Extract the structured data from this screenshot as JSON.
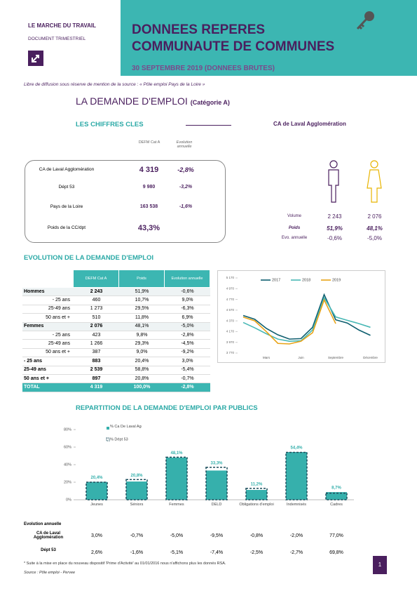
{
  "header": {
    "left_title": "LE MARCHE DU TRAVAIL",
    "left_subtitle": "DOCUMENT TRIMESTRIEL",
    "title_line1": "DONNEES REPERES",
    "title_line2": "COMMUNAUTE DE COMMUNES",
    "date": "30 SEPTEMBRE 2019 (DONNEES BRUTES)"
  },
  "notice": "Libre de diffusion sous réserve de mention de la source : « Pôle emploi Pays de la Loire »",
  "section": {
    "title": "LA DEMANDE D'EMPLOI",
    "subtitle": "(Catégorie A)"
  },
  "key_figures": {
    "title": "LES CHIFFRES CLES",
    "col1": "DEFM Cat A",
    "col2": "Evolution annuelle",
    "rows": [
      {
        "label": "CA de Laval Agglomération",
        "value": "4 319",
        "evolution": "-2,8%"
      },
      {
        "label": "Dépt 53",
        "value": "9 980",
        "evolution": "-3,2%"
      },
      {
        "label": "Pays de la Loire",
        "value": "163 538",
        "evolution": "-1,6%"
      },
      {
        "label": "Poids de la CC/dpt",
        "value": "43,3%"
      }
    ]
  },
  "gender": {
    "title": "CA de Laval Agglomération",
    "rows": [
      {
        "label": "Volume",
        "men": "2 243",
        "women": "2 076"
      },
      {
        "label": "Poids",
        "men": "51,9%",
        "women": "48,1%"
      },
      {
        "label": "Evo. annuelle",
        "men": "-0,6%",
        "women": "-5,0%"
      }
    ]
  },
  "evolution": {
    "title": "EVOLUTION DE LA DEMANDE D'EMPLOI",
    "columns": [
      "DEFM Cat A",
      "Poids",
      "Evolution annuelle"
    ],
    "groups": [
      {
        "label": "Hommes",
        "values": [
          "2 243",
          "51,9%",
          "-0,6%"
        ],
        "rows": [
          {
            "label": "- 25 ans",
            "values": [
              "460",
              "10,7%",
              "9,0%"
            ]
          },
          {
            "label": "25-49 ans",
            "values": [
              "1 273",
              "29,5%",
              "-6,3%"
            ]
          },
          {
            "label": "50 ans et +",
            "values": [
              "510",
              "11,8%",
              "6,9%"
            ]
          }
        ]
      },
      {
        "label": "Femmes",
        "values": [
          "2 076",
          "48,1%",
          "-5,0%"
        ],
        "rows": [
          {
            "label": "- 25 ans",
            "values": [
              "423",
              "9,8%",
              "-2,8%"
            ]
          },
          {
            "label": "25-49 ans",
            "values": [
              "1 266",
              "29,3%",
              "-4,5%"
            ]
          },
          {
            "label": "50 ans et +",
            "values": [
              "387",
              "9,0%",
              "-9,2%"
            ]
          }
        ]
      }
    ],
    "summary": [
      {
        "label": "- 25 ans",
        "values": [
          "883",
          "20,4%",
          "3,0%"
        ]
      },
      {
        "label": "25-49 ans",
        "values": [
          "2 539",
          "58,8%",
          "-5,4%"
        ]
      },
      {
        "label": "50 ans et +",
        "values": [
          "897",
          "20,8%",
          "-0,7%"
        ]
      }
    ],
    "total": {
      "label": "TOTAL",
      "values": [
        "4 319",
        "100,0%",
        "-2,8%"
      ]
    }
  },
  "chart_data": [
    {
      "type": "line",
      "categories": [
        null,
        null,
        "Mars",
        null,
        null,
        "Juin",
        null,
        null,
        "Septembre",
        null,
        null,
        "Décembre"
      ],
      "series": [
        {
          "name": "2017",
          "color": "#0e5e6f",
          "values": [
            4470,
            4400,
            4230,
            4110,
            4030,
            4040,
            4250,
            4860,
            4390,
            4330,
            4200,
            4100
          ]
        },
        {
          "name": "2018",
          "color": "#48b8b5",
          "values": [
            4340,
            4240,
            4130,
            4030,
            3990,
            4000,
            4200,
            4800,
            4443,
            4380,
            4320,
            4250
          ]
        },
        {
          "name": "2019",
          "color": "#e8a317",
          "values": [
            4440,
            4370,
            4170,
            3950,
            3940,
            3990,
            4150,
            4760,
            4319,
            null,
            null,
            null
          ]
        }
      ],
      "ylim": [
        3770,
        5170
      ],
      "yticks": [
        {
          "value": 3770,
          "label": "3 770"
        },
        {
          "value": 3970,
          "label": "3 970"
        },
        {
          "value": 4170,
          "label": "4 170"
        },
        {
          "value": 4370,
          "label": "4 370"
        },
        {
          "value": 4570,
          "label": "4 570"
        },
        {
          "value": 4770,
          "label": "4 770"
        },
        {
          "value": 4970,
          "label": "4 970"
        },
        {
          "value": 5170,
          "label": "5 170"
        }
      ],
      "legend": "top"
    },
    {
      "type": "bar",
      "title": "REPARTITION DE LA DEMANDE D'EMPLOI PAR PUBLICS",
      "categories": [
        "Jeunes",
        "Séniors",
        "Femmes",
        "DELD",
        "Obligations d'emploi",
        "Indemnisés",
        "Cadres"
      ],
      "series": [
        {
          "name": "% Ca De Laval Agglomération",
          "color": "#36b0ac",
          "values": [
            20.4,
            20.8,
            48.1,
            33.3,
            11.2,
            54.4,
            8.7
          ],
          "value_labels": [
            "20,4%",
            "20,8%",
            "48,1%",
            "33,3%",
            "11,2%",
            "54,4%",
            "8,7%"
          ]
        },
        {
          "name": "% Dépt 53",
          "color": "#1d4e5c",
          "values": [
            20,
            23,
            48.5,
            37,
            13,
            54,
            7.5
          ]
        }
      ],
      "ylim": [
        0,
        80
      ],
      "yticks": [
        {
          "value": 0,
          "label": "0%"
        },
        {
          "value": 20,
          "label": "20%"
        },
        {
          "value": 40,
          "label": "40%"
        },
        {
          "value": 60,
          "label": "60%"
        },
        {
          "value": 80,
          "label": "80%"
        }
      ]
    }
  ],
  "annual": {
    "title": "Evolution annuelle",
    "rows": [
      {
        "label": "CA de Laval Agglomération",
        "values": [
          "3,0%",
          "-0,7%",
          "-5,0%",
          "-9,5%",
          "-0,8%",
          "-2,0%",
          "77,0%"
        ]
      },
      {
        "label": "Dépt 53",
        "values": [
          "2,6%",
          "-1,6%",
          "-5,1%",
          "-7,4%",
          "-2,5%",
          "-2,7%",
          "69,8%"
        ]
      }
    ]
  },
  "footnote": "* Suite à la mise en place du nouveau dispositif 'Prime d'Activité' au 01/01/2016 nous n'affichons plus les donnés RSA.",
  "source": "Source : Pôle emploi - Pervee",
  "page_number": "1"
}
